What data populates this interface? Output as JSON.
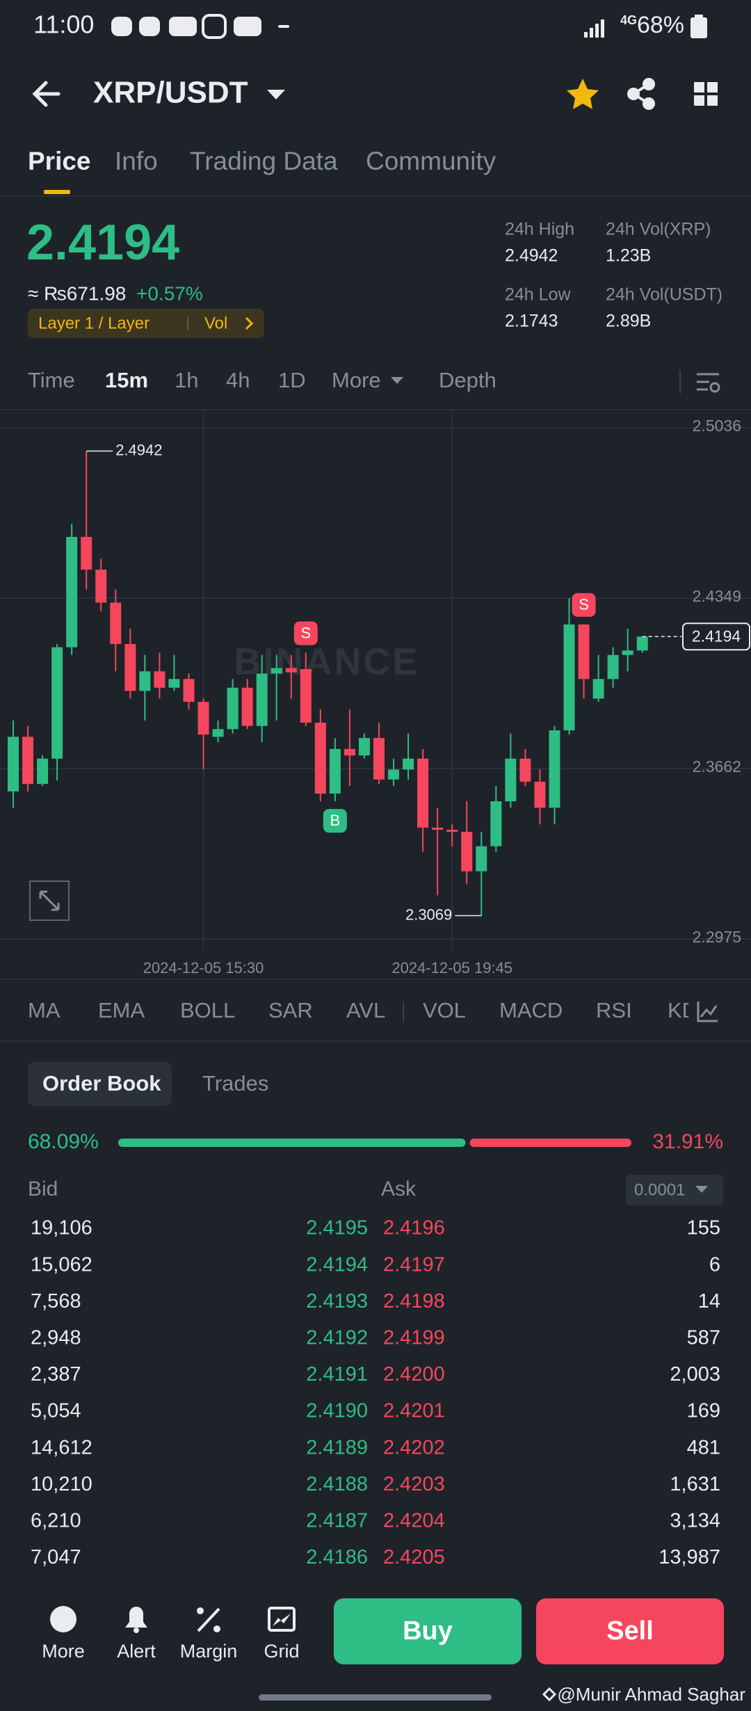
{
  "status_bar": {
    "time": "11:00",
    "network": "4G",
    "battery": "68%"
  },
  "header": {
    "pair": "XRP/USDT"
  },
  "tabs": {
    "items": [
      "Price",
      "Info",
      "Trading Data",
      "Community"
    ],
    "active": 0
  },
  "price": {
    "last": "2.4194",
    "fiat": "≈ ₨671.98",
    "change": "+0.57%",
    "tags": [
      "Layer 1 / Layer",
      "Vol"
    ]
  },
  "stats": [
    {
      "label": "24h High",
      "value": "2.4942"
    },
    {
      "label": "24h Vol(XRP)",
      "value": "1.23B"
    },
    {
      "label": "24h Low",
      "value": "2.1743"
    },
    {
      "label": "24h Vol(USDT)",
      "value": "2.89B"
    }
  ],
  "intervals": {
    "items": [
      "Time",
      "15m",
      "1h",
      "4h",
      "1D",
      "More",
      "Depth"
    ],
    "active": 1
  },
  "chart_data": {
    "type": "candlestick",
    "watermark": "BINANCE",
    "up_color": "#2ebd85",
    "down_color": "#f6465d",
    "grid": true,
    "open": [
      2.357,
      2.379,
      2.36,
      2.3702,
      2.4151,
      2.4596,
      2.4464,
      2.4331,
      2.4164,
      2.3975,
      2.4054,
      2.3988,
      2.4023,
      2.3931,
      2.379,
      2.3821,
      2.3988,
      2.3834,
      2.4045,
      2.4067,
      2.4063,
      2.3847,
      2.3561,
      2.3741,
      2.3715,
      2.3785,
      2.3618,
      2.3658,
      2.3702,
      2.3424,
      2.3415,
      2.3407,
      2.3248,
      2.3349,
      2.353,
      2.3702,
      2.3609,
      2.3504,
      2.3816,
      2.4243,
      2.3944,
      2.4023,
      2.412,
      2.4138
    ],
    "high": [
      2.3856,
      2.3834,
      2.3715,
      2.4164,
      2.4649,
      2.4942,
      2.4508,
      2.4384,
      2.4226,
      2.412,
      2.4129,
      2.412,
      2.4045,
      2.3944,
      2.3856,
      2.4023,
      2.4023,
      2.412,
      2.412,
      2.412,
      2.4129,
      2.39,
      2.3785,
      2.39,
      2.3803,
      2.3847,
      2.3702,
      2.3803,
      2.3741,
      2.3504,
      2.3437,
      2.353,
      2.3407,
      2.3592,
      2.3803,
      2.3741,
      2.3658,
      2.3834,
      2.4349,
      2.4243,
      2.412,
      2.4151,
      2.4226,
      2.4194
    ],
    "low": [
      2.3504,
      2.357,
      2.3592,
      2.3614,
      2.412,
      2.4384,
      2.4296,
      2.4054,
      2.3944,
      2.3856,
      2.3944,
      2.3975,
      2.39,
      2.3658,
      2.3768,
      2.3803,
      2.3821,
      2.3768,
      2.3856,
      2.3944,
      2.3834,
      2.353,
      2.353,
      2.3592,
      2.3702,
      2.36,
      2.3592,
      2.3618,
      2.3327,
      2.3151,
      2.3349,
      2.3195,
      2.3069,
      2.3327,
      2.3504,
      2.3592,
      2.3437,
      2.3437,
      2.3799,
      2.3944,
      2.3931,
      2.3988,
      2.4054,
      2.4129
    ],
    "close": [
      2.379,
      2.36,
      2.3702,
      2.4151,
      2.4596,
      2.4464,
      2.4331,
      2.4164,
      2.3975,
      2.4054,
      2.3988,
      2.4023,
      2.3931,
      2.3799,
      2.3821,
      2.3988,
      2.3834,
      2.4045,
      2.4067,
      2.405,
      2.3847,
      2.3561,
      2.3741,
      2.3715,
      2.3785,
      2.3618,
      2.3658,
      2.3702,
      2.3424,
      2.3415,
      2.3407,
      2.3248,
      2.3349,
      2.353,
      2.3702,
      2.3609,
      2.3504,
      2.3816,
      2.4243,
      2.4023,
      2.4023,
      2.412,
      2.4138,
      2.4194
    ],
    "ylim": [
      2.2975,
      2.5036
    ],
    "yticks": [
      2.2975,
      2.3662,
      2.4349,
      2.5036
    ],
    "xticks": [
      {
        "value": 13,
        "label": "2024-12-05 15:30"
      },
      {
        "value": 30,
        "label": "2024-12-05 19:45"
      }
    ],
    "high_label": 2.4942,
    "low_label": 2.3069,
    "last_price": 2.4194,
    "signals": [
      {
        "x": 20,
        "label": "S"
      },
      {
        "x": 22,
        "label": "B"
      },
      {
        "x": 39,
        "label": "S"
      }
    ]
  },
  "indicators": [
    "MA",
    "EMA",
    "BOLL",
    "SAR",
    "AVL",
    "VOL",
    "MACD",
    "RSI",
    "KDJ"
  ],
  "order_book": {
    "tabs": [
      "Order Book",
      "Trades"
    ],
    "bid_ratio": {
      "value": 68.09,
      "label": "68.09%"
    },
    "ask_ratio": {
      "value": 31.91,
      "label": "31.91%"
    },
    "columns": [
      "Bid",
      "Ask"
    ],
    "precision": "0.0001",
    "rows": [
      [
        "19,106",
        "2.4195",
        "2.4196",
        "155"
      ],
      [
        "15,062",
        "2.4194",
        "2.4197",
        "6"
      ],
      [
        "7,568",
        "2.4193",
        "2.4198",
        "14"
      ],
      [
        "2,948",
        "2.4192",
        "2.4199",
        "587"
      ],
      [
        "2,387",
        "2.4191",
        "2.4200",
        "2,003"
      ],
      [
        "5,054",
        "2.4190",
        "2.4201",
        "169"
      ],
      [
        "14,612",
        "2.4189",
        "2.4202",
        "481"
      ],
      [
        "10,210",
        "2.4188",
        "2.4203",
        "1,631"
      ],
      [
        "6,210",
        "2.4187",
        "2.4204",
        "3,134"
      ],
      [
        "7,047",
        "2.4186",
        "2.4205",
        "13,987"
      ]
    ]
  },
  "bottom_bar": {
    "nav": [
      "More",
      "Alert",
      "Margin",
      "Grid"
    ],
    "buy": "Buy",
    "sell": "Sell"
  },
  "watermark": "@Munir Ahmad Saghar"
}
